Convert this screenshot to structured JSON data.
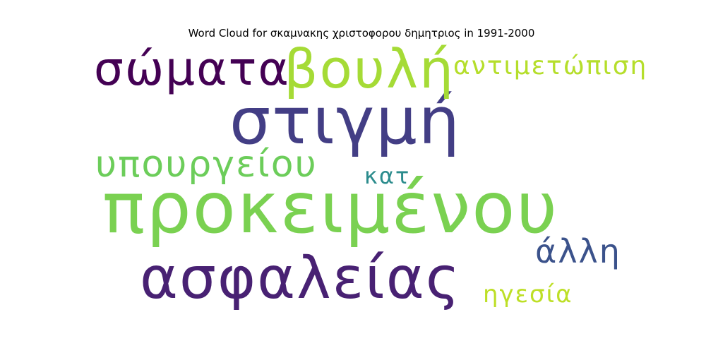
{
  "chart_data": {
    "type": "wordcloud",
    "title": "Word Cloud for σκαμνακης χριστοφορου δημητριος in 1991-2000",
    "words": [
      {
        "text": "προκειμένου",
        "color": "#7ad151"
      },
      {
        "text": "στιγμή",
        "color": "#433e85"
      },
      {
        "text": "ασφαλείας",
        "color": "#482173"
      },
      {
        "text": "βουλή",
        "color": "#a5db36"
      },
      {
        "text": "σώματα",
        "color": "#440154"
      },
      {
        "text": "υπουργείου",
        "color": "#6ccd5a"
      },
      {
        "text": "άλλη",
        "color": "#3b528b"
      },
      {
        "text": "αντιμετώπιση",
        "color": "#b5de2b"
      },
      {
        "text": "ηγεσία",
        "color": "#bddf26"
      },
      {
        "text": "κατ",
        "color": "#2c8c8d"
      }
    ]
  }
}
